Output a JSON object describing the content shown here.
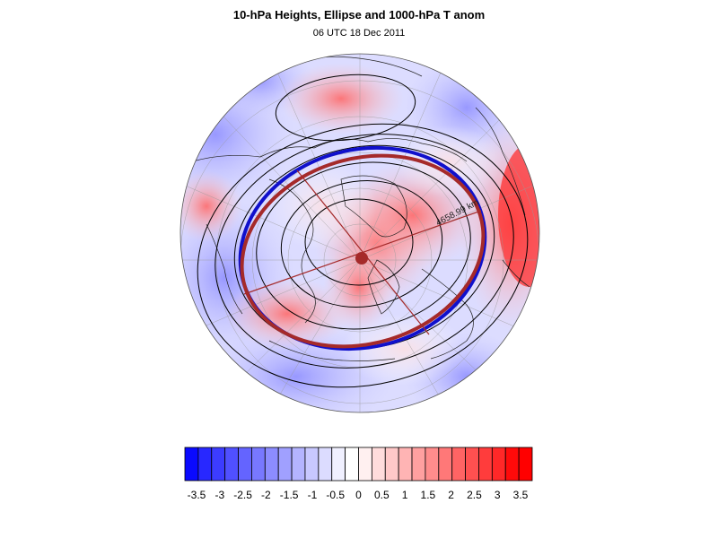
{
  "header": {
    "title": "10-hPa Heights, Ellipse and 1000-hPa T anom",
    "subtitle": "06 UTC 18 Dec 2011"
  },
  "map": {
    "projection": "polar stereographic (north pole)",
    "ellipse_axis_label": "4658.99 km",
    "colors": {
      "ellipse_outer": "#1010cc",
      "ellipse_inner": "#a52a2a",
      "center_dot": "#a52a2a",
      "height_contours": "#000000",
      "coastline": "#222222"
    }
  },
  "colorbar": {
    "labels": [
      "-3.5",
      "-3",
      "-2.5",
      "-2",
      "-1.5",
      "-1",
      "-0.5",
      "0",
      "0.5",
      "1",
      "1.5",
      "2",
      "2.5",
      "3",
      "3.5"
    ],
    "colors": [
      "#0a0aff",
      "#2828ff",
      "#3c3cff",
      "#5050ff",
      "#6464ff",
      "#7878ff",
      "#8c8cff",
      "#a0a0ff",
      "#b4b4ff",
      "#c8c8ff",
      "#dcdcff",
      "#f0f0ff",
      "#ffffff",
      "#fff0f0",
      "#ffdcdc",
      "#ffc8c8",
      "#ffb4b4",
      "#ffa0a0",
      "#ff8c8c",
      "#ff7878",
      "#ff6464",
      "#ff5050",
      "#ff3c3c",
      "#ff2828",
      "#ff0a0a",
      "#ff0000"
    ]
  }
}
